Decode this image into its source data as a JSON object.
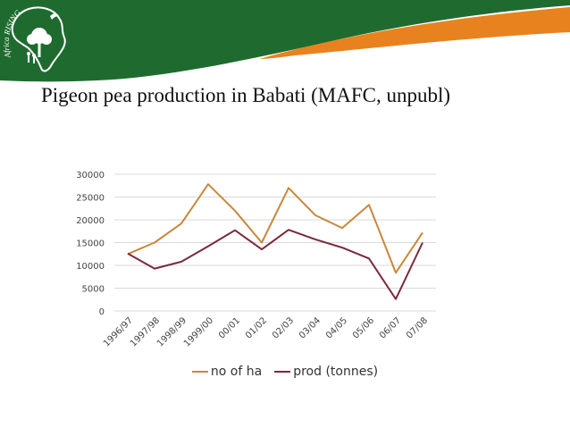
{
  "slide": {
    "title": "Pigeon pea production in Babati (MAFC, unpubl)",
    "logo_text": "Africa RISING"
  },
  "colors": {
    "banner_green": "#1f6b2f",
    "banner_orange": "#e8821e",
    "series_ha": "#c8883a",
    "series_prod": "#7a2a3a",
    "grid": "#d9d9d9"
  },
  "icons": [
    "africa-map-icon",
    "tree-icon",
    "bird-icon",
    "people-icon"
  ],
  "chart_data": {
    "type": "line",
    "title": "",
    "xlabel": "",
    "ylabel": "",
    "categories": [
      "1996/97",
      "1997/98",
      "1998/99",
      "1999/00",
      "00/01",
      "01/02",
      "02/03",
      "03/04",
      "04/05",
      "05/06",
      "06/07",
      "07/08"
    ],
    "ylim": [
      0,
      30000
    ],
    "yticks": [
      0,
      5000,
      10000,
      15000,
      20000,
      25000,
      30000
    ],
    "grid": true,
    "legend": "bottom",
    "series": [
      {
        "name": "no of ha",
        "color": "#c8883a",
        "values": [
          12500,
          15000,
          19200,
          27800,
          22000,
          15000,
          27000,
          21000,
          18200,
          23300,
          8400,
          17200
        ]
      },
      {
        "name": "prod (tonnes)",
        "color": "#7a2a3a",
        "values": [
          12600,
          9300,
          10800,
          14200,
          17700,
          13500,
          17800,
          15700,
          13900,
          11500,
          2600,
          15000
        ]
      }
    ]
  }
}
